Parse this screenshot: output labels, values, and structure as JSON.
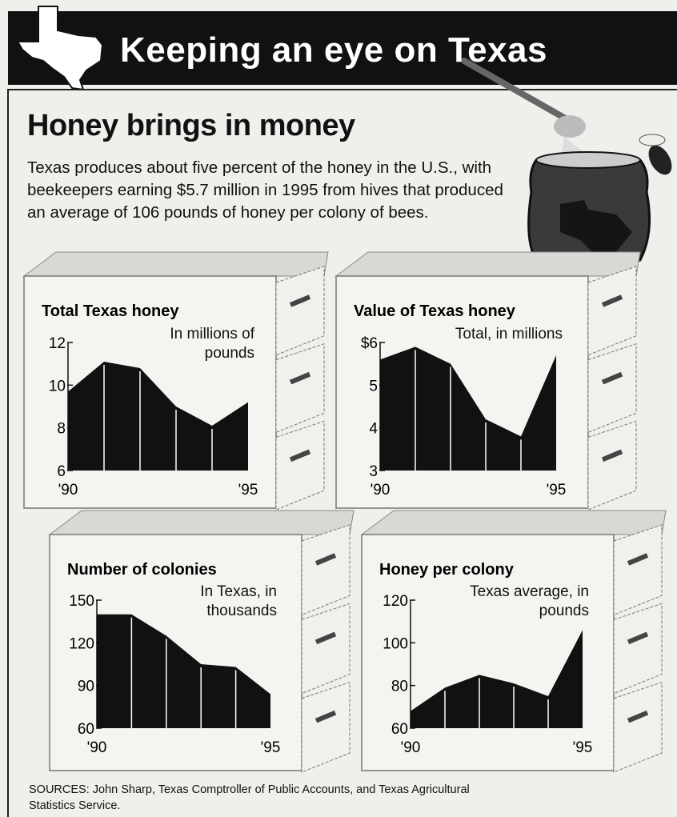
{
  "header": {
    "title": "Keeping an eye on Texas"
  },
  "title": "Honey brings in money",
  "intro": "Texas produces about five percent of the honey in the U.S., with beekeepers earning $5.7 million in 1995 from hives that produced an average of 106 pounds of honey per colony of bees.",
  "sources": "SOURCES: John Sharp, Texas Comptroller of Public Accounts, and Texas Agricultural Statistics Service.",
  "chart_data": [
    {
      "type": "area",
      "title": "Total Texas honey",
      "subtitle": "In millions of pounds",
      "color": "#111111",
      "categories": [
        "'90",
        null,
        null,
        null,
        null,
        "'95"
      ],
      "values": [
        9.7,
        11.1,
        10.8,
        9.0,
        8.1,
        9.2
      ],
      "ylim": [
        6,
        12
      ],
      "yticks": [
        6,
        8,
        10,
        12
      ]
    },
    {
      "type": "area",
      "title": "Value of Texas honey",
      "subtitle": "Total, in millions",
      "color": "#111111",
      "categories": [
        "'90",
        null,
        null,
        null,
        null,
        "'95"
      ],
      "values": [
        5.6,
        5.9,
        5.5,
        4.2,
        3.8,
        5.7
      ],
      "ylim": [
        3,
        6
      ],
      "yticks": [
        3,
        4,
        5,
        {
          "value": 6,
          "label": "$6"
        }
      ]
    },
    {
      "type": "area",
      "title": "Number of colonies",
      "subtitle": "In Texas, in thousands",
      "color": "#111111",
      "categories": [
        "'90",
        null,
        null,
        null,
        null,
        "'95"
      ],
      "values": [
        140,
        140,
        125,
        105,
        103,
        84
      ],
      "ylim": [
        60,
        150
      ],
      "yticks": [
        60,
        90,
        120,
        150
      ]
    },
    {
      "type": "area",
      "title": "Honey per colony",
      "subtitle": "Texas average, in pounds",
      "color": "#111111",
      "categories": [
        "'90",
        null,
        null,
        null,
        null,
        "'95"
      ],
      "values": [
        68,
        79,
        85,
        81,
        75,
        106
      ],
      "ylim": [
        60,
        120
      ],
      "yticks": [
        60,
        80,
        100,
        120
      ]
    }
  ]
}
